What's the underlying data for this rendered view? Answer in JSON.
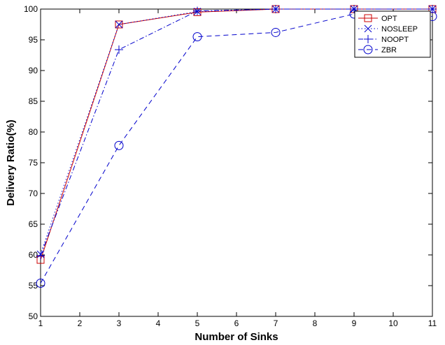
{
  "chart_data": {
    "type": "line",
    "title": "",
    "xlabel": "Number of Sinks",
    "ylabel": "Delivery Ratio(%)",
    "xlim": [
      1,
      11
    ],
    "ylim": [
      50,
      100
    ],
    "xticks": [
      1,
      2,
      3,
      4,
      5,
      6,
      7,
      8,
      9,
      10,
      11
    ],
    "yticks": [
      50,
      55,
      60,
      65,
      70,
      75,
      80,
      85,
      90,
      95,
      100
    ],
    "grid": false,
    "legend_position": "top-right",
    "series": [
      {
        "name": "OPT",
        "color": "#cc0000",
        "marker": "square",
        "linestyle": "solid",
        "x": [
          1,
          3,
          5,
          7,
          9,
          11
        ],
        "y": [
          59.2,
          97.5,
          99.5,
          100,
          100,
          100
        ]
      },
      {
        "name": "NOSLEEP",
        "color": "#0000cc",
        "marker": "x",
        "linestyle": "dotted",
        "x": [
          1,
          3,
          5,
          7,
          9,
          11
        ],
        "y": [
          60.1,
          97.5,
          99.6,
          100,
          100,
          100
        ]
      },
      {
        "name": "NOOPT",
        "color": "#0000cc",
        "marker": "plus",
        "linestyle": "dashdot",
        "x": [
          1,
          3,
          5,
          7,
          9,
          11
        ],
        "y": [
          59.9,
          93.4,
          99.7,
          100,
          100,
          100
        ]
      },
      {
        "name": "ZBR",
        "color": "#0000cc",
        "marker": "circle",
        "linestyle": "dashed",
        "x": [
          1,
          3,
          5,
          7,
          9,
          11
        ],
        "y": [
          55.4,
          77.8,
          95.5,
          96.2,
          99.2,
          98.8
        ]
      }
    ]
  }
}
